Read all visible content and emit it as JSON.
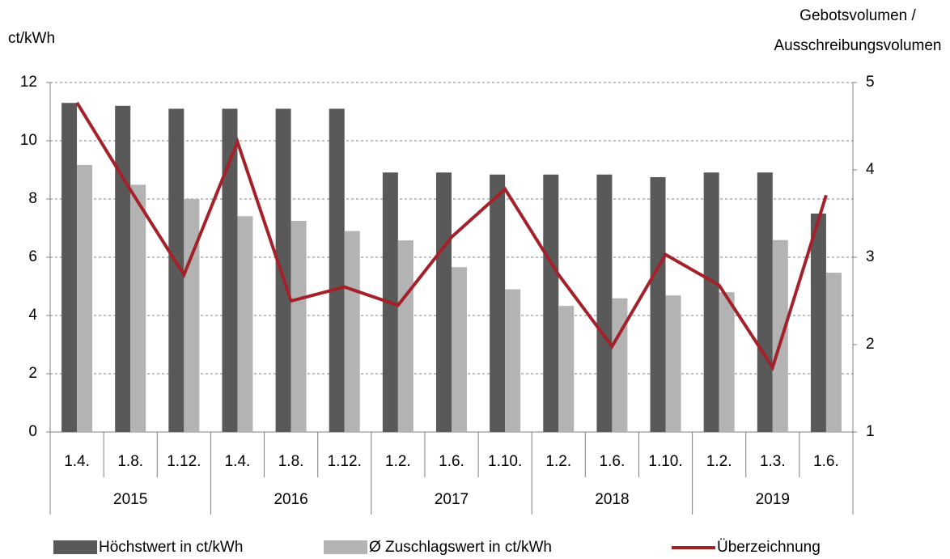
{
  "chart_data": {
    "type": "bar-line",
    "y_label": "ct/kWh",
    "y2_label": [
      "Gebotsvolumen /",
      "Ausschreibungsvolumen"
    ],
    "groups": [
      {
        "name": "2015",
        "categories": [
          "1.4.",
          "1.8.",
          "1.12."
        ]
      },
      {
        "name": "2016",
        "categories": [
          "1.4.",
          "1.8.",
          "1.12."
        ]
      },
      {
        "name": "2017",
        "categories": [
          "1.2.",
          "1.6.",
          "1.10."
        ]
      },
      {
        "name": "2018",
        "categories": [
          "1.2.",
          "1.6.",
          "1.10."
        ]
      },
      {
        "name": "2019",
        "categories": [
          "1.2.",
          "1.3.",
          "1.6."
        ]
      }
    ],
    "series": [
      {
        "name": "Höchstwert in ct/kWh",
        "type": "bar",
        "color": "#595959",
        "values": [
          11.3,
          11.2,
          11.1,
          11.1,
          11.1,
          11.1,
          8.91,
          8.91,
          8.84,
          8.84,
          8.84,
          8.75,
          8.91,
          8.91,
          7.5
        ]
      },
      {
        "name": "Ø Zuschlagswert in ct/kWh",
        "type": "bar",
        "color": "#b3b3b3",
        "values": [
          9.17,
          8.49,
          8.0,
          7.41,
          7.25,
          6.9,
          6.58,
          5.66,
          4.9,
          4.33,
          4.59,
          4.69,
          4.8,
          6.59,
          5.47
        ]
      },
      {
        "name": "Überzeichnung",
        "type": "line",
        "axis": "y2",
        "color": "#a5212a",
        "values": [
          4.77,
          3.77,
          2.8,
          4.32,
          2.5,
          2.66,
          2.45,
          3.23,
          3.78,
          2.8,
          1.98,
          3.03,
          2.68,
          1.74,
          3.71
        ]
      }
    ],
    "ylim": [
      0,
      12
    ],
    "yticks": [
      0,
      2,
      4,
      6,
      8,
      10,
      12
    ],
    "y2lim": [
      1,
      5
    ],
    "y2ticks": [
      1,
      2,
      3,
      4,
      5
    ],
    "grid": true
  }
}
